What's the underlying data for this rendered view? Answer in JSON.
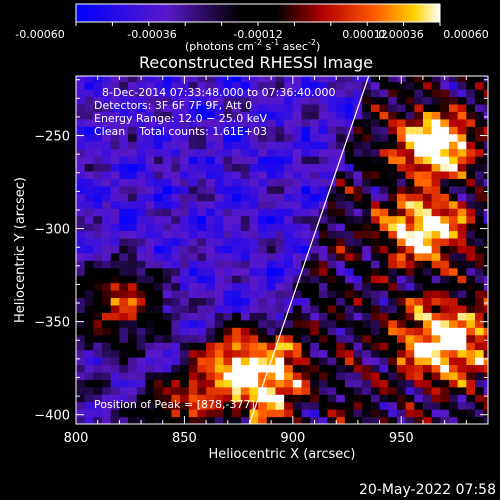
{
  "footer": {
    "timestamp": "20-May-2022 07:58"
  },
  "colorbar": {
    "tick_labels": [
      "-0.00060",
      "-0.00036",
      "-0.00012",
      "0.00012",
      "0.00036",
      "0.00060"
    ],
    "unit_main": "(photons cm",
    "unit_exp1": "-2",
    "unit_mid": " s",
    "unit_exp2": "-1",
    "unit_tail": " asec",
    "unit_exp3": "-2",
    "unit_close": ")",
    "range": [
      -0.0006,
      0.0006
    ],
    "colors": [
      "#0000ff",
      "#5a18c8",
      "#000000",
      "#b40000",
      "#ff5a00",
      "#ffd200",
      "#ffffff"
    ]
  },
  "chart_data": {
    "type": "heatmap",
    "title": "Reconstructed RHESSI Image",
    "xlabel": "Heliocentric X (arcsec)",
    "ylabel": "Heliocentric Y (arcsec)",
    "xlim": [
      800,
      990
    ],
    "ylim": [
      -405,
      -218
    ],
    "x_ticks": [
      800,
      850,
      900,
      950
    ],
    "y_ticks": [
      -250,
      -300,
      -350,
      -400
    ],
    "x_tick_labels": [
      "800",
      "850",
      "900",
      "950"
    ],
    "y_tick_labels": [
      "−250",
      "−300",
      "−350",
      "−400"
    ],
    "annotations": [
      "8-Dec-2014 07:33:48.000 to 07:36:40.000",
      "Detectors: 3F 6F 7F 9F, Att 0",
      "Energy Range: 12.0 − 25.0 keV",
      "Clean    Total counts: 1.61E+03"
    ],
    "peak_label": "Position of Peak = [878,-377]",
    "peak_position": [
      878,
      -377
    ],
    "limb_line": [
      [
        880,
        -405
      ],
      [
        935,
        -218
      ]
    ],
    "bright_regions": [
      {
        "x": 878,
        "y": -377,
        "radius": 22,
        "level": 1.0
      },
      {
        "x": 965,
        "y": -255,
        "radius": 16,
        "level": 0.85
      },
      {
        "x": 960,
        "y": -300,
        "radius": 18,
        "level": 0.7
      },
      {
        "x": 970,
        "y": -360,
        "radius": 20,
        "level": 0.75
      },
      {
        "x": 820,
        "y": -340,
        "radius": 20,
        "level": 0.55
      },
      {
        "x": 845,
        "y": -395,
        "radius": 14,
        "level": 0.5
      }
    ],
    "colormap": [
      "#0000ff",
      "#5a18c8",
      "#000000",
      "#b40000",
      "#ff5a00",
      "#ffd200",
      "#ffffff"
    ],
    "grid": false
  }
}
